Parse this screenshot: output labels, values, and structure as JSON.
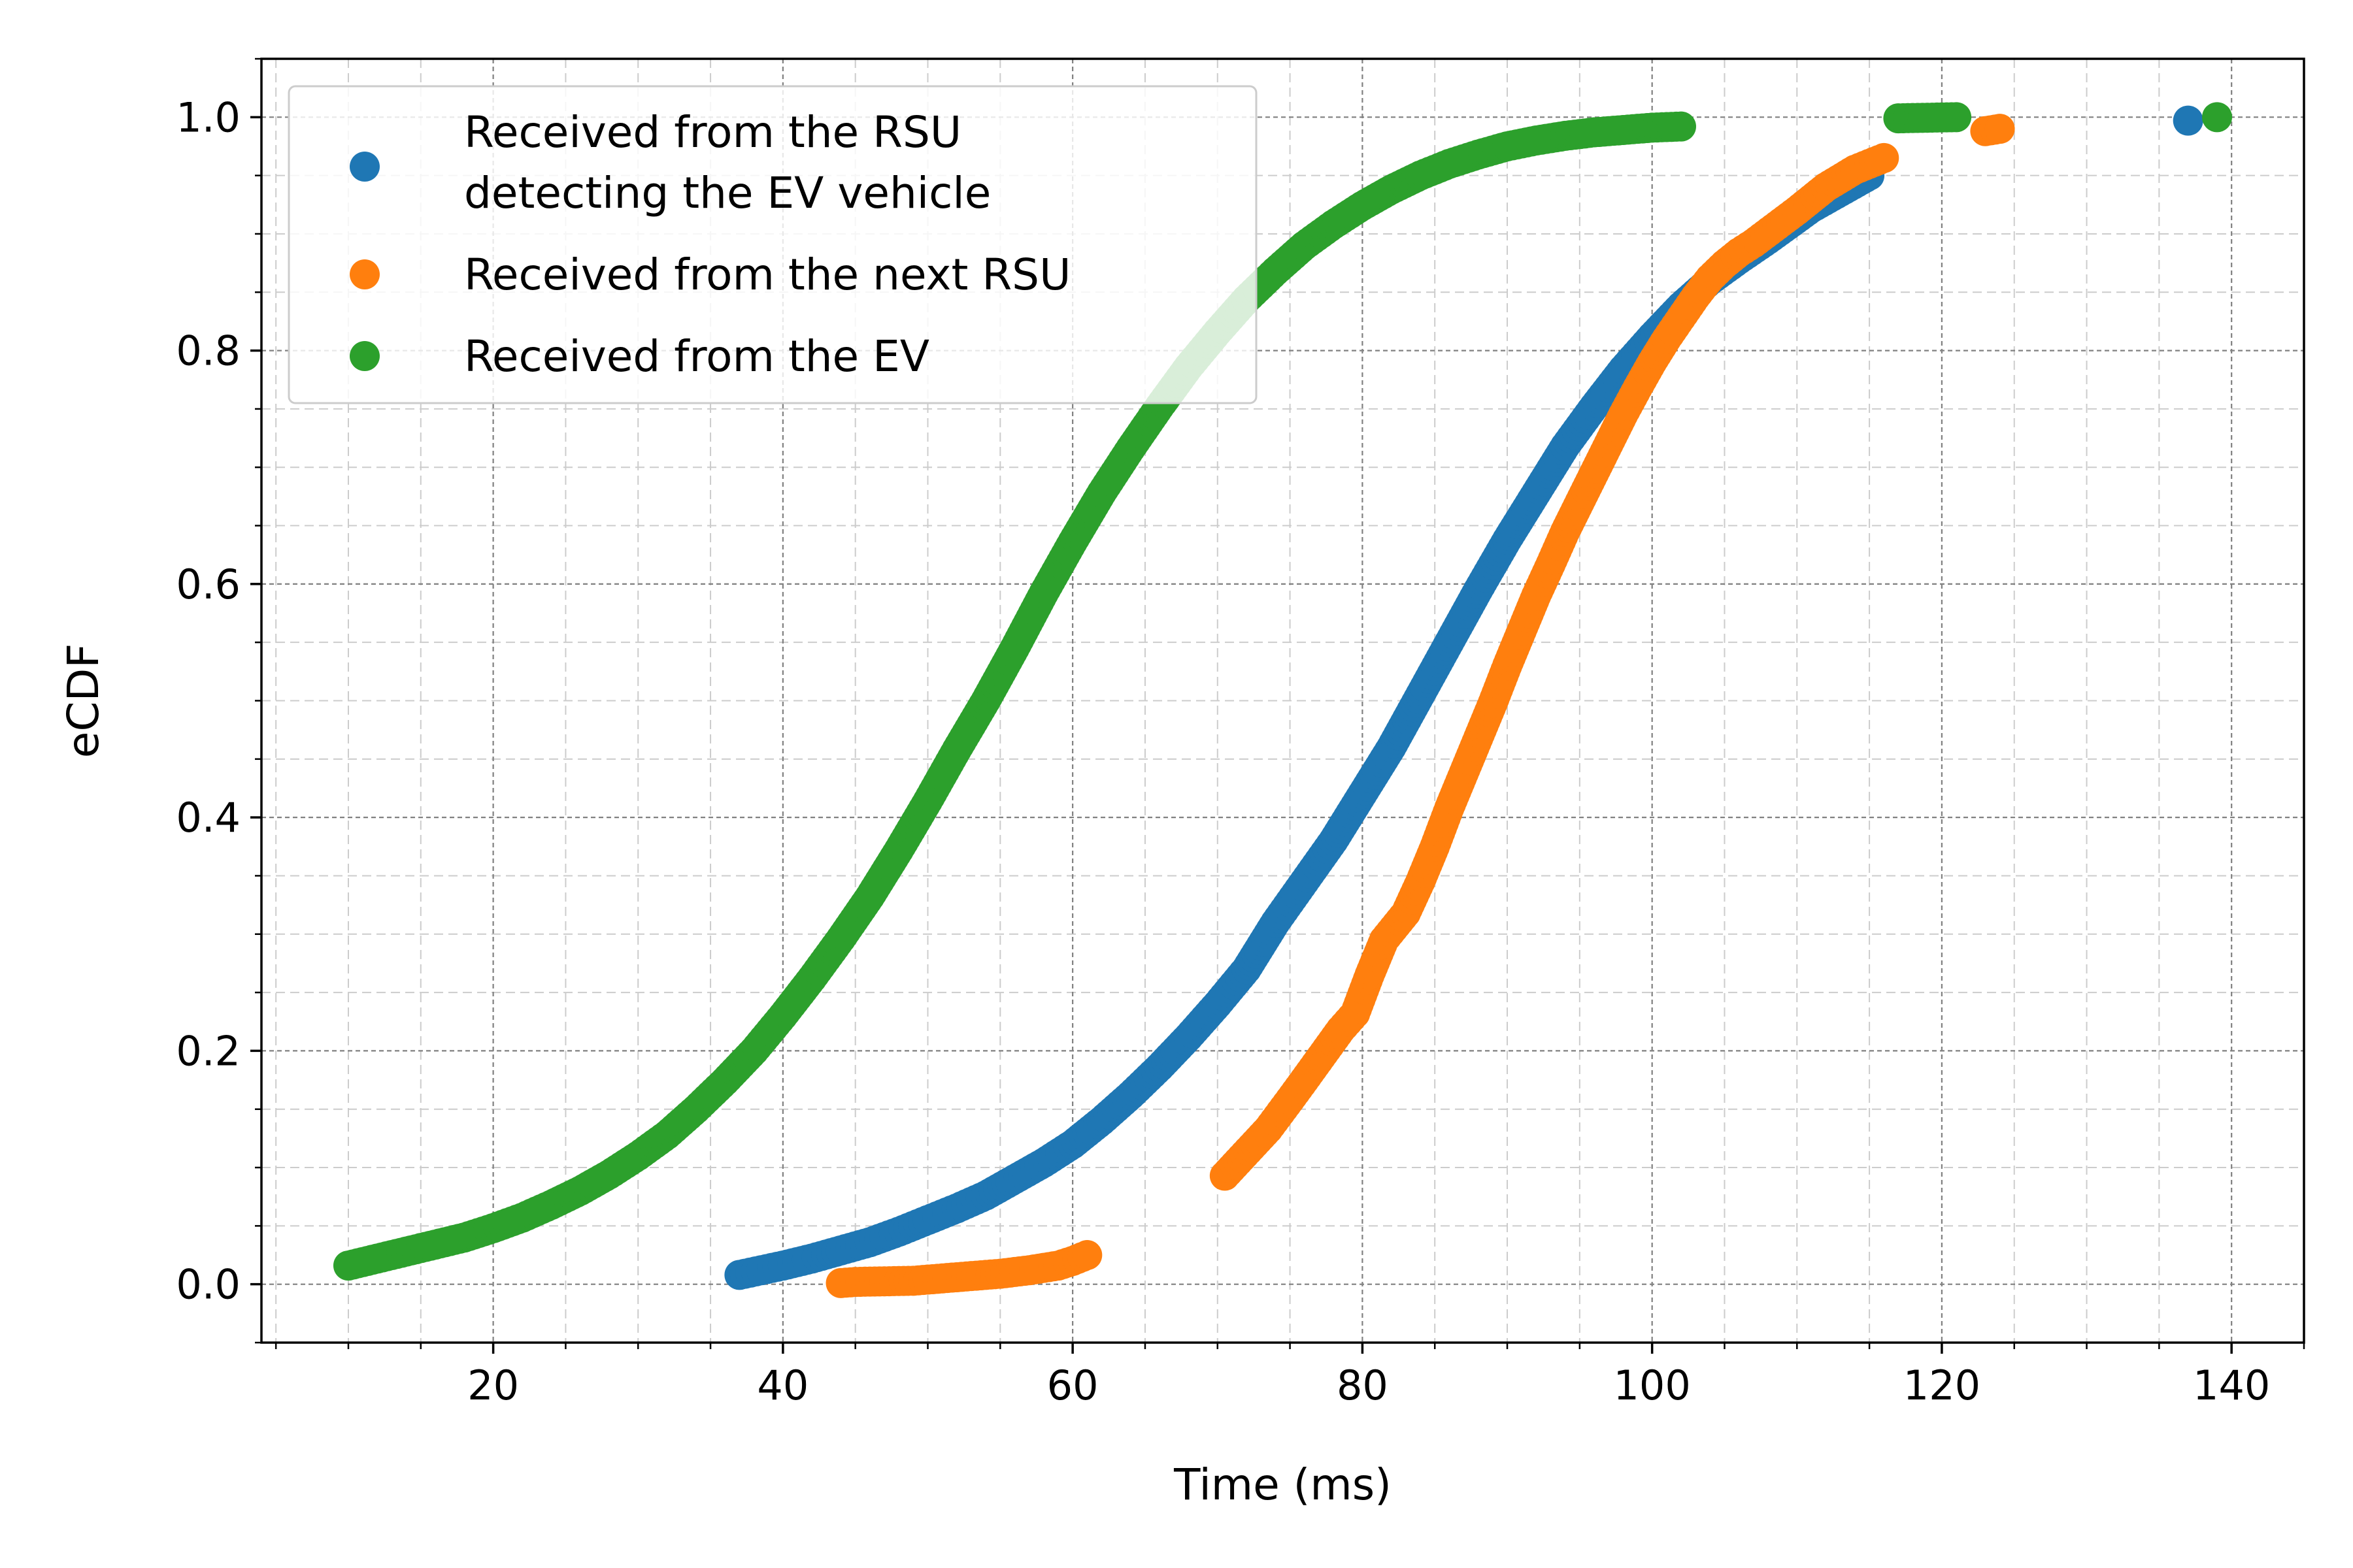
{
  "chart_data": {
    "type": "scatter",
    "title": "",
    "xlabel": "Time (ms)",
    "ylabel": "eCDF",
    "xlim": [
      4,
      145
    ],
    "ylim": [
      -0.05,
      1.05
    ],
    "x_ticks": [
      20,
      40,
      60,
      80,
      100,
      120,
      140
    ],
    "x_tick_labels": [
      "20",
      "40",
      "60",
      "80",
      "100",
      "120",
      "140"
    ],
    "y_ticks": [
      0.0,
      0.2,
      0.4,
      0.6,
      0.8,
      1.0
    ],
    "y_tick_labels": [
      "0.0",
      "0.2",
      "0.4",
      "0.6",
      "0.8",
      "1.0"
    ],
    "grid": true,
    "minor_grid": true,
    "legend_position": "upper-left",
    "series": [
      {
        "name_lines": [
          "Received from the RSU",
          "detecting the EV vehicle"
        ],
        "color": "#1f77b4",
        "x": [
          37.0,
          38.5,
          40.0,
          42.0,
          44.0,
          46.0,
          48.0,
          50.0,
          52.0,
          54.0,
          56.0,
          58.0,
          60.0,
          62.0,
          64.0,
          66.0,
          68.0,
          70.0,
          72.0,
          74.0,
          76.0,
          78.0,
          80.0,
          82.0,
          84.0,
          86.0,
          88.0,
          90.0,
          92.0,
          94.0,
          96.0,
          98.0,
          100.0,
          102.0,
          104.0,
          106.0,
          108.0,
          111.0,
          115.0,
          137.0
        ],
        "y": [
          0.008,
          0.012,
          0.016,
          0.022,
          0.029,
          0.036,
          0.045,
          0.055,
          0.065,
          0.076,
          0.09,
          0.104,
          0.12,
          0.14,
          0.162,
          0.186,
          0.212,
          0.24,
          0.27,
          0.31,
          0.345,
          0.38,
          0.42,
          0.46,
          0.505,
          0.55,
          0.595,
          0.638,
          0.678,
          0.718,
          0.752,
          0.784,
          0.812,
          0.838,
          0.86,
          0.878,
          0.895,
          0.922,
          0.95,
          0.997
        ]
      },
      {
        "name_lines": [
          "Received from the next RSU"
        ],
        "color": "#ff7f0e",
        "x": [
          44.0,
          45.0,
          49.0,
          51.0,
          53.0,
          55.0,
          57.0,
          59.0,
          60.0,
          61.0,
          70.5,
          73.5,
          75.0,
          76.0,
          78.5,
          79.5,
          80.5,
          81.5,
          83.0,
          84.0,
          85.0,
          86.0,
          87.0,
          88.0,
          89.0,
          90.0,
          91.0,
          92.0,
          93.0,
          94.0,
          95.0,
          96.0,
          97.0,
          98.0,
          99.0,
          100.0,
          101.0,
          102.0,
          103.0,
          104.0,
          105.0,
          106.0,
          107.0,
          110.0,
          112.0,
          114.0,
          116.0,
          123.0,
          124.0
        ],
        "y": [
          0.001,
          0.002,
          0.003,
          0.005,
          0.007,
          0.009,
          0.012,
          0.016,
          0.02,
          0.025,
          0.093,
          0.133,
          0.158,
          0.175,
          0.218,
          0.232,
          0.265,
          0.295,
          0.318,
          0.345,
          0.375,
          0.408,
          0.438,
          0.468,
          0.498,
          0.53,
          0.56,
          0.59,
          0.617,
          0.645,
          0.67,
          0.695,
          0.72,
          0.745,
          0.768,
          0.79,
          0.81,
          0.828,
          0.846,
          0.862,
          0.874,
          0.884,
          0.892,
          0.92,
          0.94,
          0.955,
          0.965,
          0.988,
          0.99
        ]
      },
      {
        "name_lines": [
          "Received from the EV"
        ],
        "color": "#2ca02c",
        "x": [
          10.0,
          12.0,
          14.0,
          16.0,
          18.0,
          20.0,
          22.0,
          24.0,
          26.0,
          28.0,
          30.0,
          32.0,
          34.0,
          36.0,
          38.0,
          40.0,
          42.0,
          44.0,
          46.0,
          48.0,
          50.0,
          52.0,
          54.0,
          56.0,
          58.0,
          60.0,
          62.0,
          64.0,
          66.0,
          68.0,
          70.0,
          72.0,
          74.0,
          76.0,
          78.0,
          80.0,
          82.0,
          84.0,
          86.0,
          88.0,
          90.0,
          92.0,
          94.0,
          96.0,
          98.0,
          100.0,
          102.0,
          117.0,
          121.0,
          139.0
        ],
        "y": [
          0.016,
          0.022,
          0.028,
          0.034,
          0.04,
          0.048,
          0.057,
          0.068,
          0.08,
          0.094,
          0.11,
          0.128,
          0.15,
          0.174,
          0.2,
          0.23,
          0.262,
          0.296,
          0.332,
          0.372,
          0.414,
          0.458,
          0.5,
          0.545,
          0.592,
          0.636,
          0.678,
          0.716,
          0.752,
          0.786,
          0.816,
          0.844,
          0.868,
          0.89,
          0.908,
          0.924,
          0.938,
          0.95,
          0.96,
          0.968,
          0.975,
          0.98,
          0.984,
          0.987,
          0.989,
          0.991,
          0.992,
          0.999,
          1.0,
          1.0
        ]
      }
    ]
  }
}
